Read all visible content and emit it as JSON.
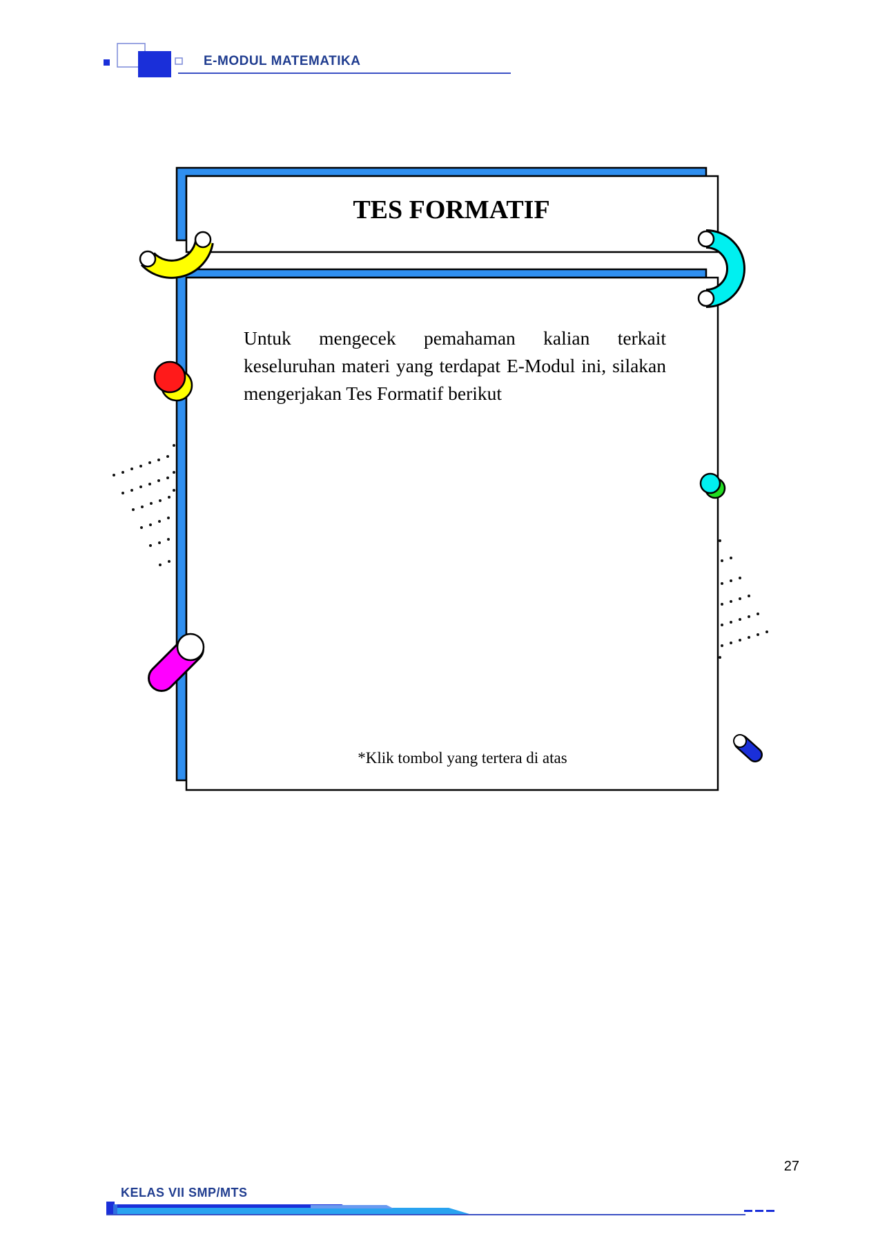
{
  "header": {
    "title": "E-MODUL MATEMATIKA"
  },
  "card": {
    "title": "TES FORMATIF",
    "body": "Untuk mengecek pemahaman kalian terkait keseluruhan materi yang terdapat E-Modul ini, silakan mengerjakan Tes Formatif berikut",
    "note": "*Klik tombol yang tertera di atas"
  },
  "footer": {
    "class_label": "KELAS VII SMP/MTS",
    "page_number": "27"
  },
  "colors": {
    "brand_blue": "#1f3c8f",
    "frame_blue": "#2f8ff0",
    "accent_yellow": "#ffff00",
    "accent_cyan": "#00f0f0",
    "accent_red": "#ff1a1a",
    "accent_magenta": "#ff00ff",
    "accent_green": "#22dd22",
    "accent_navy": "#1a2fd9"
  }
}
